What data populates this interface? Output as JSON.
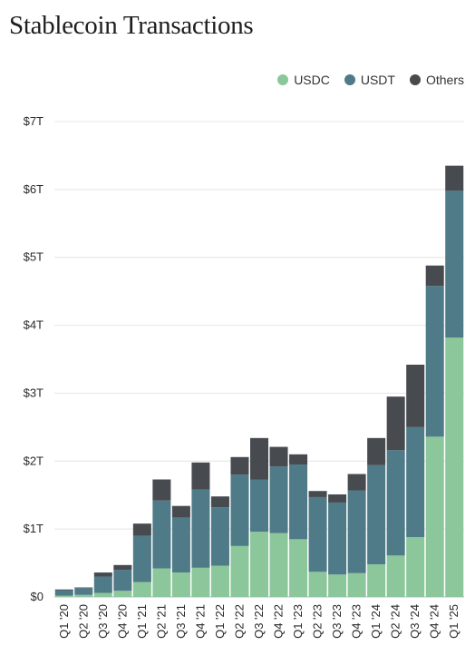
{
  "colors": {
    "usdc": "#8cc69b",
    "usdt": "#4f7a87",
    "others": "#474b4f",
    "grid": "#e4e4e4"
  },
  "chart_data": {
    "type": "bar",
    "stacked": true,
    "title": "Stablecoin Transactions",
    "xlabel": "",
    "ylabel": "",
    "ylim": [
      0,
      7
    ],
    "yticks": [
      0,
      1,
      2,
      3,
      4,
      5,
      6,
      7
    ],
    "ytick_labels": [
      "$0",
      "$1T",
      "$2T",
      "$3T",
      "$4T",
      "$5T",
      "$6T",
      "$7T"
    ],
    "grid": true,
    "legend_position": "top-right",
    "categories": [
      "Q1 '20",
      "Q2 '20",
      "Q3 '20",
      "Q4 '20",
      "Q1 '21",
      "Q2 '21",
      "Q3 '21",
      "Q4 '21",
      "Q1 '22",
      "Q2 '22",
      "Q3 '22",
      "Q4 '22",
      "Q1 '23",
      "Q2 '23",
      "Q3 '23",
      "Q4 '23",
      "Q1 '24",
      "Q2 '24",
      "Q3 '24",
      "Q4 '24",
      "Q1 '25"
    ],
    "series": [
      {
        "name": "USDC",
        "color_key": "usdc",
        "values": [
          0.02,
          0.03,
          0.06,
          0.09,
          0.22,
          0.42,
          0.36,
          0.43,
          0.46,
          0.75,
          0.96,
          0.94,
          0.85,
          0.37,
          0.33,
          0.35,
          0.48,
          0.61,
          0.88,
          2.36,
          3.82
        ]
      },
      {
        "name": "USDT",
        "color_key": "usdt",
        "values": [
          0.08,
          0.1,
          0.24,
          0.31,
          0.68,
          1.0,
          0.81,
          1.15,
          0.86,
          1.05,
          0.77,
          0.98,
          1.1,
          1.1,
          1.06,
          1.22,
          1.46,
          1.55,
          1.62,
          2.22,
          2.16
        ]
      },
      {
        "name": "Others",
        "color_key": "others",
        "values": [
          0.01,
          0.01,
          0.06,
          0.07,
          0.18,
          0.31,
          0.17,
          0.4,
          0.16,
          0.26,
          0.61,
          0.29,
          0.15,
          0.09,
          0.12,
          0.24,
          0.4,
          0.79,
          0.92,
          0.3,
          0.37
        ]
      }
    ]
  }
}
